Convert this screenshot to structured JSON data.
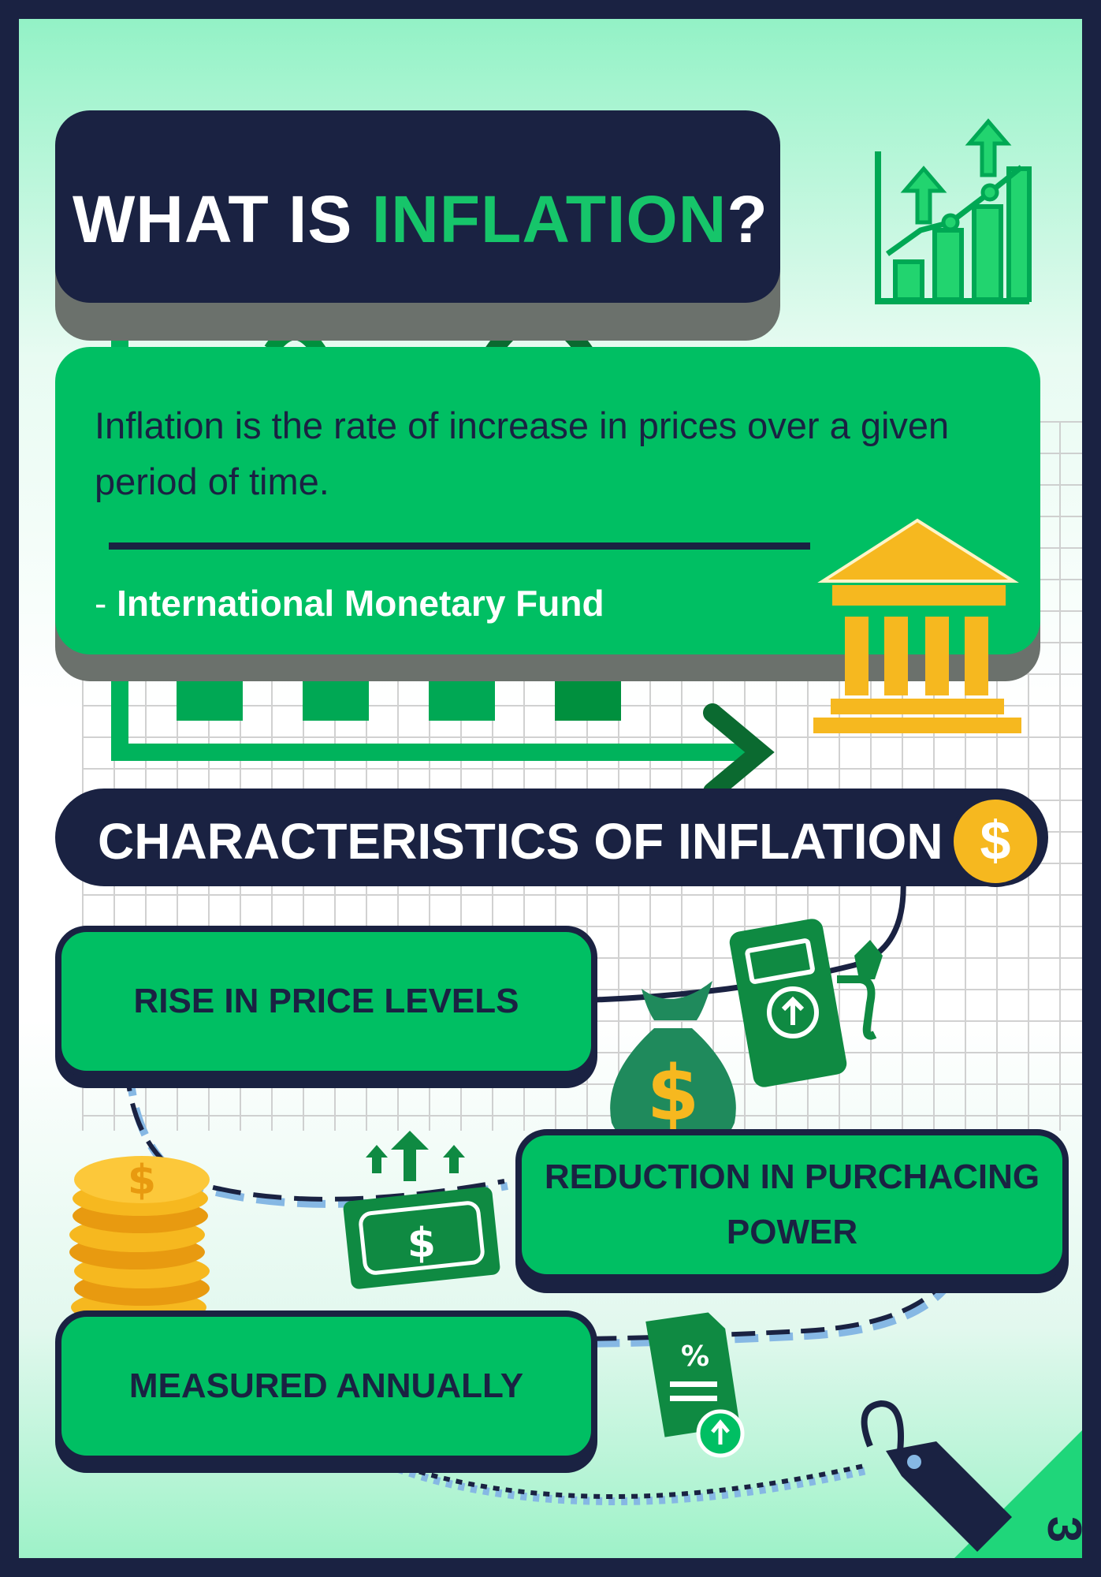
{
  "title": {
    "prefix": "WHAT IS ",
    "highlight": "INFLATION",
    "suffix": "?"
  },
  "definition": {
    "text": "Inflation is the rate of increase in prices over a given period of time.",
    "source_dash": "- ",
    "source": "International Monetary Fund"
  },
  "characteristics": {
    "heading": "CHARACTERISTICS OF INFLATION",
    "badge_symbol": "$",
    "items": [
      "RISE IN PRICE LEVELS",
      "REDUCTION IN PURCHACING POWER",
      "MEASURED ANNUALLY"
    ]
  },
  "icons": {
    "chart": "growth-bar-chart-icon",
    "bank": "bank-building-icon",
    "fuel": "fuel-pump-icon",
    "bag": "money-bag-icon",
    "bill": "dollar-bill-icon",
    "coins": "coin-stack-icon",
    "document": "percent-document-icon",
    "tag": "price-tag-icon"
  },
  "colors": {
    "navy": "#1a2242",
    "green": "#00bf63",
    "gold": "#f6b81f"
  },
  "page_number": "3"
}
